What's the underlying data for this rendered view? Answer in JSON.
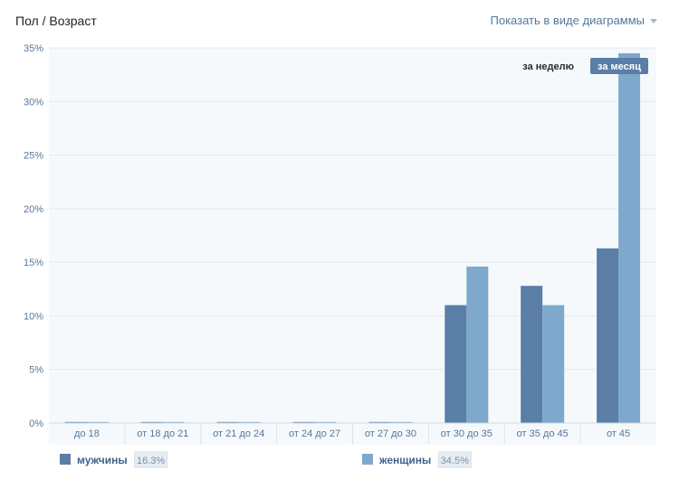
{
  "header": {
    "title": "Пол / Возраст",
    "view_toggle": "Показать в виде диаграммы"
  },
  "period": {
    "week": "за неделю",
    "month": "за месяц"
  },
  "colors": {
    "men": "#5a7ea6",
    "women": "#7ea8cc",
    "chart_bg": "#f6f9fc",
    "grid": "#e4e9ef"
  },
  "chart_data": {
    "type": "bar",
    "categories": [
      "до 18",
      "от 18 до 21",
      "от 21 до 24",
      "от 24 до 27",
      "от 27 до 30",
      "от 30 до 35",
      "от 35 до 45",
      "от 45"
    ],
    "series": [
      {
        "name": "мужчины",
        "values": [
          0.1,
          0.1,
          0.1,
          0.1,
          0.1,
          11.0,
          12.8,
          16.3
        ]
      },
      {
        "name": "женщины",
        "values": [
          0.1,
          0.1,
          0.1,
          0.1,
          0.1,
          14.6,
          11.0,
          34.5
        ]
      }
    ],
    "ylim": [
      0,
      35
    ],
    "yticks": [
      "0%",
      "5%",
      "10%",
      "15%",
      "20%",
      "25%",
      "30%",
      "35%"
    ],
    "grid": true
  },
  "legend": [
    {
      "label": "мужчины",
      "value": "16.3%"
    },
    {
      "label": "женщины",
      "value": "34.5%"
    }
  ]
}
